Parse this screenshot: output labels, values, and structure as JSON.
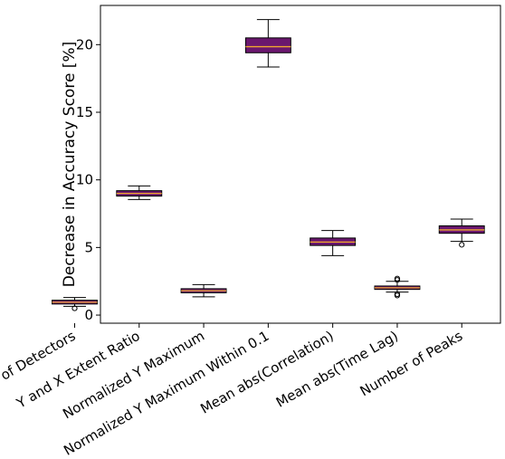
{
  "chart_data": {
    "type": "box",
    "title": "",
    "xlabel": "",
    "ylabel": "Decrease in Accuracy Score [%]",
    "ylim": [
      -0.6,
      22.9
    ],
    "yticks": [
      0,
      5,
      10,
      15,
      20
    ],
    "grid": false,
    "legend": "none",
    "box_face_color": "#6a176e",
    "median_color": "#f0a830",
    "categories": [
      "Number of Detectors",
      "Y and X Extent Ratio",
      "Normalized Y Maximum",
      "Normalized Y Maximum Within 0.1",
      "Mean abs(Correlation)",
      "Mean abs(Time Lag)",
      "Number of Peaks"
    ],
    "boxes": [
      {
        "category": "Number of Detectors",
        "whisker_low": 0.65,
        "q1": 0.82,
        "median": 0.95,
        "q3": 1.1,
        "whisker_high": 1.3,
        "outliers": [
          0.5
        ]
      },
      {
        "category": "Y and X Extent Ratio",
        "whisker_low": 8.55,
        "q1": 8.8,
        "median": 9.0,
        "q3": 9.2,
        "whisker_high": 9.55,
        "outliers": []
      },
      {
        "category": "Normalized Y Maximum",
        "whisker_low": 1.35,
        "q1": 1.65,
        "median": 1.8,
        "q3": 1.95,
        "whisker_high": 2.25,
        "outliers": []
      },
      {
        "category": "Normalized Y Maximum Within 0.1",
        "whisker_low": 18.35,
        "q1": 19.4,
        "median": 19.85,
        "q3": 20.5,
        "whisker_high": 21.85,
        "outliers": []
      },
      {
        "category": "Mean abs(Correlation)",
        "whisker_low": 4.4,
        "q1": 5.15,
        "median": 5.4,
        "q3": 5.7,
        "whisker_high": 6.25,
        "outliers": []
      },
      {
        "category": "Mean abs(Time Lag)",
        "whisker_low": 1.7,
        "q1": 1.9,
        "median": 2.02,
        "q3": 2.15,
        "whisker_high": 2.5,
        "outliers": [
          1.45,
          1.55,
          2.6,
          2.7
        ]
      },
      {
        "category": "Number of Peaks",
        "whisker_low": 5.45,
        "q1": 6.05,
        "median": 6.3,
        "q3": 6.6,
        "whisker_high": 7.1,
        "outliers": [
          5.2
        ]
      }
    ]
  }
}
